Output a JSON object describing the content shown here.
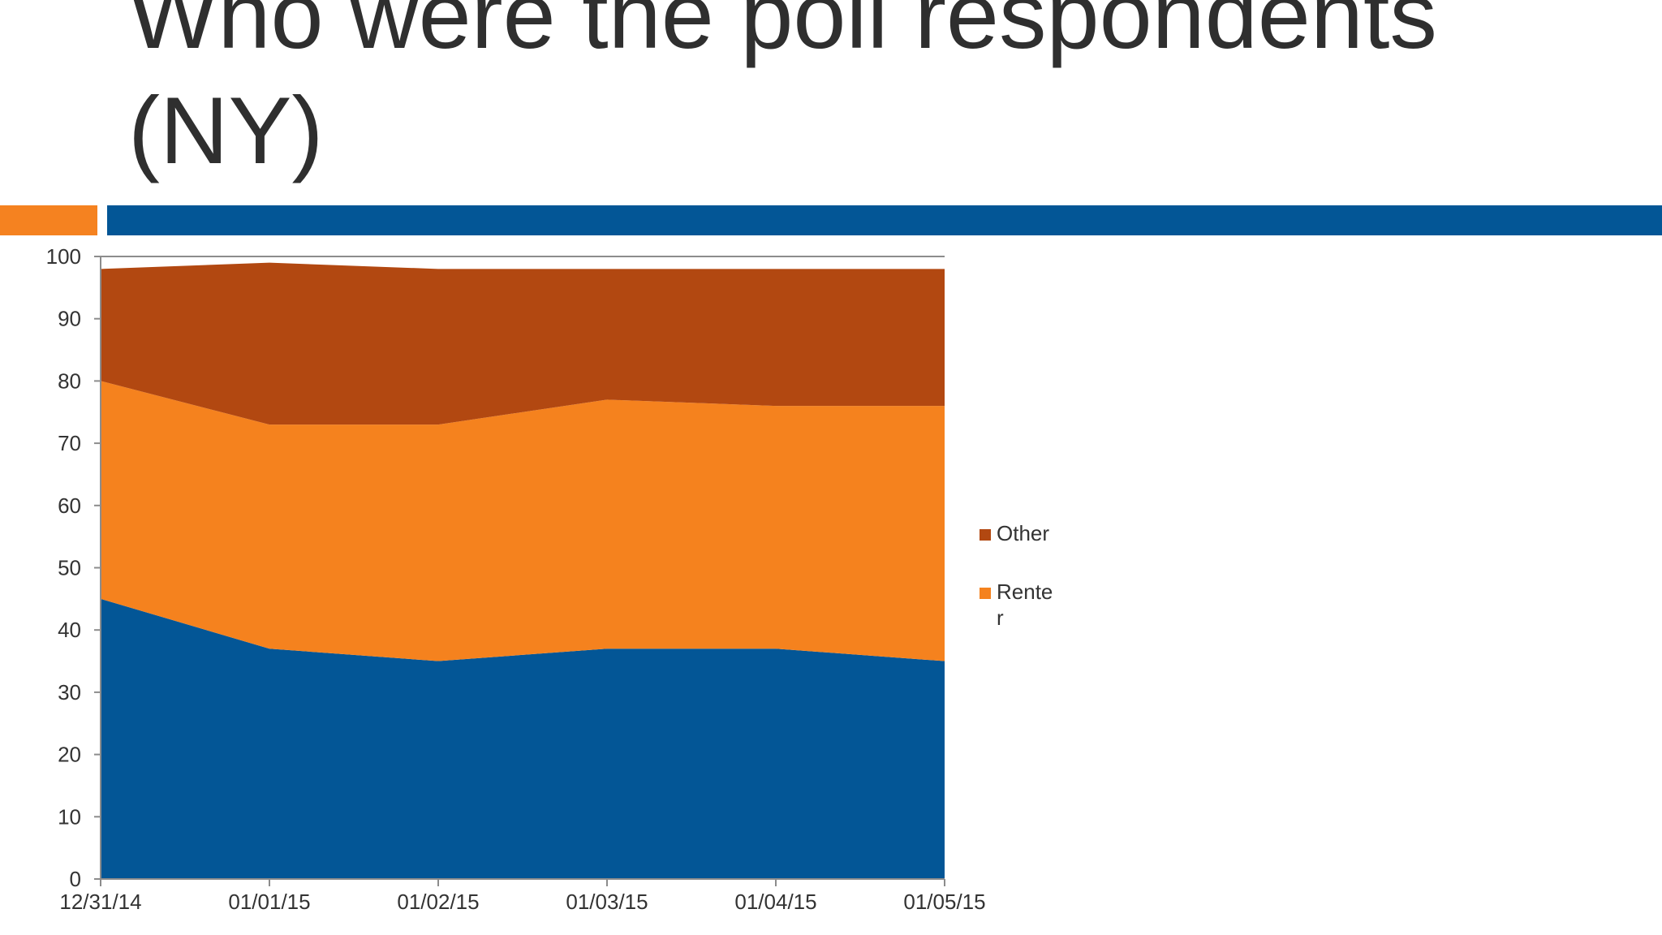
{
  "slide": {
    "title": "Who were the poll respondents\n(NY)"
  },
  "chart_data": {
    "type": "area",
    "stacked": true,
    "title": "",
    "xlabel": "",
    "ylabel": "",
    "categories": [
      "12/31/14",
      "01/01/15",
      "01/02/15",
      "01/03/15",
      "01/04/15",
      "01/05/15"
    ],
    "ylim": [
      0,
      100
    ],
    "yticks": [
      0,
      10,
      20,
      30,
      40,
      50,
      60,
      70,
      80,
      90,
      100
    ],
    "grid": false,
    "legend_position": "right",
    "series": [
      {
        "name": "",
        "color": "#035696",
        "values": [
          45,
          37,
          35,
          37,
          37,
          35
        ]
      },
      {
        "name": "Renter",
        "legend_lines": [
          "Rente",
          "r"
        ],
        "color": "#f5821e",
        "values": [
          35,
          36,
          38,
          40,
          39,
          41
        ]
      },
      {
        "name": "Other",
        "color": "#b24811",
        "values": [
          18,
          26,
          25,
          21,
          22,
          22
        ]
      }
    ]
  }
}
